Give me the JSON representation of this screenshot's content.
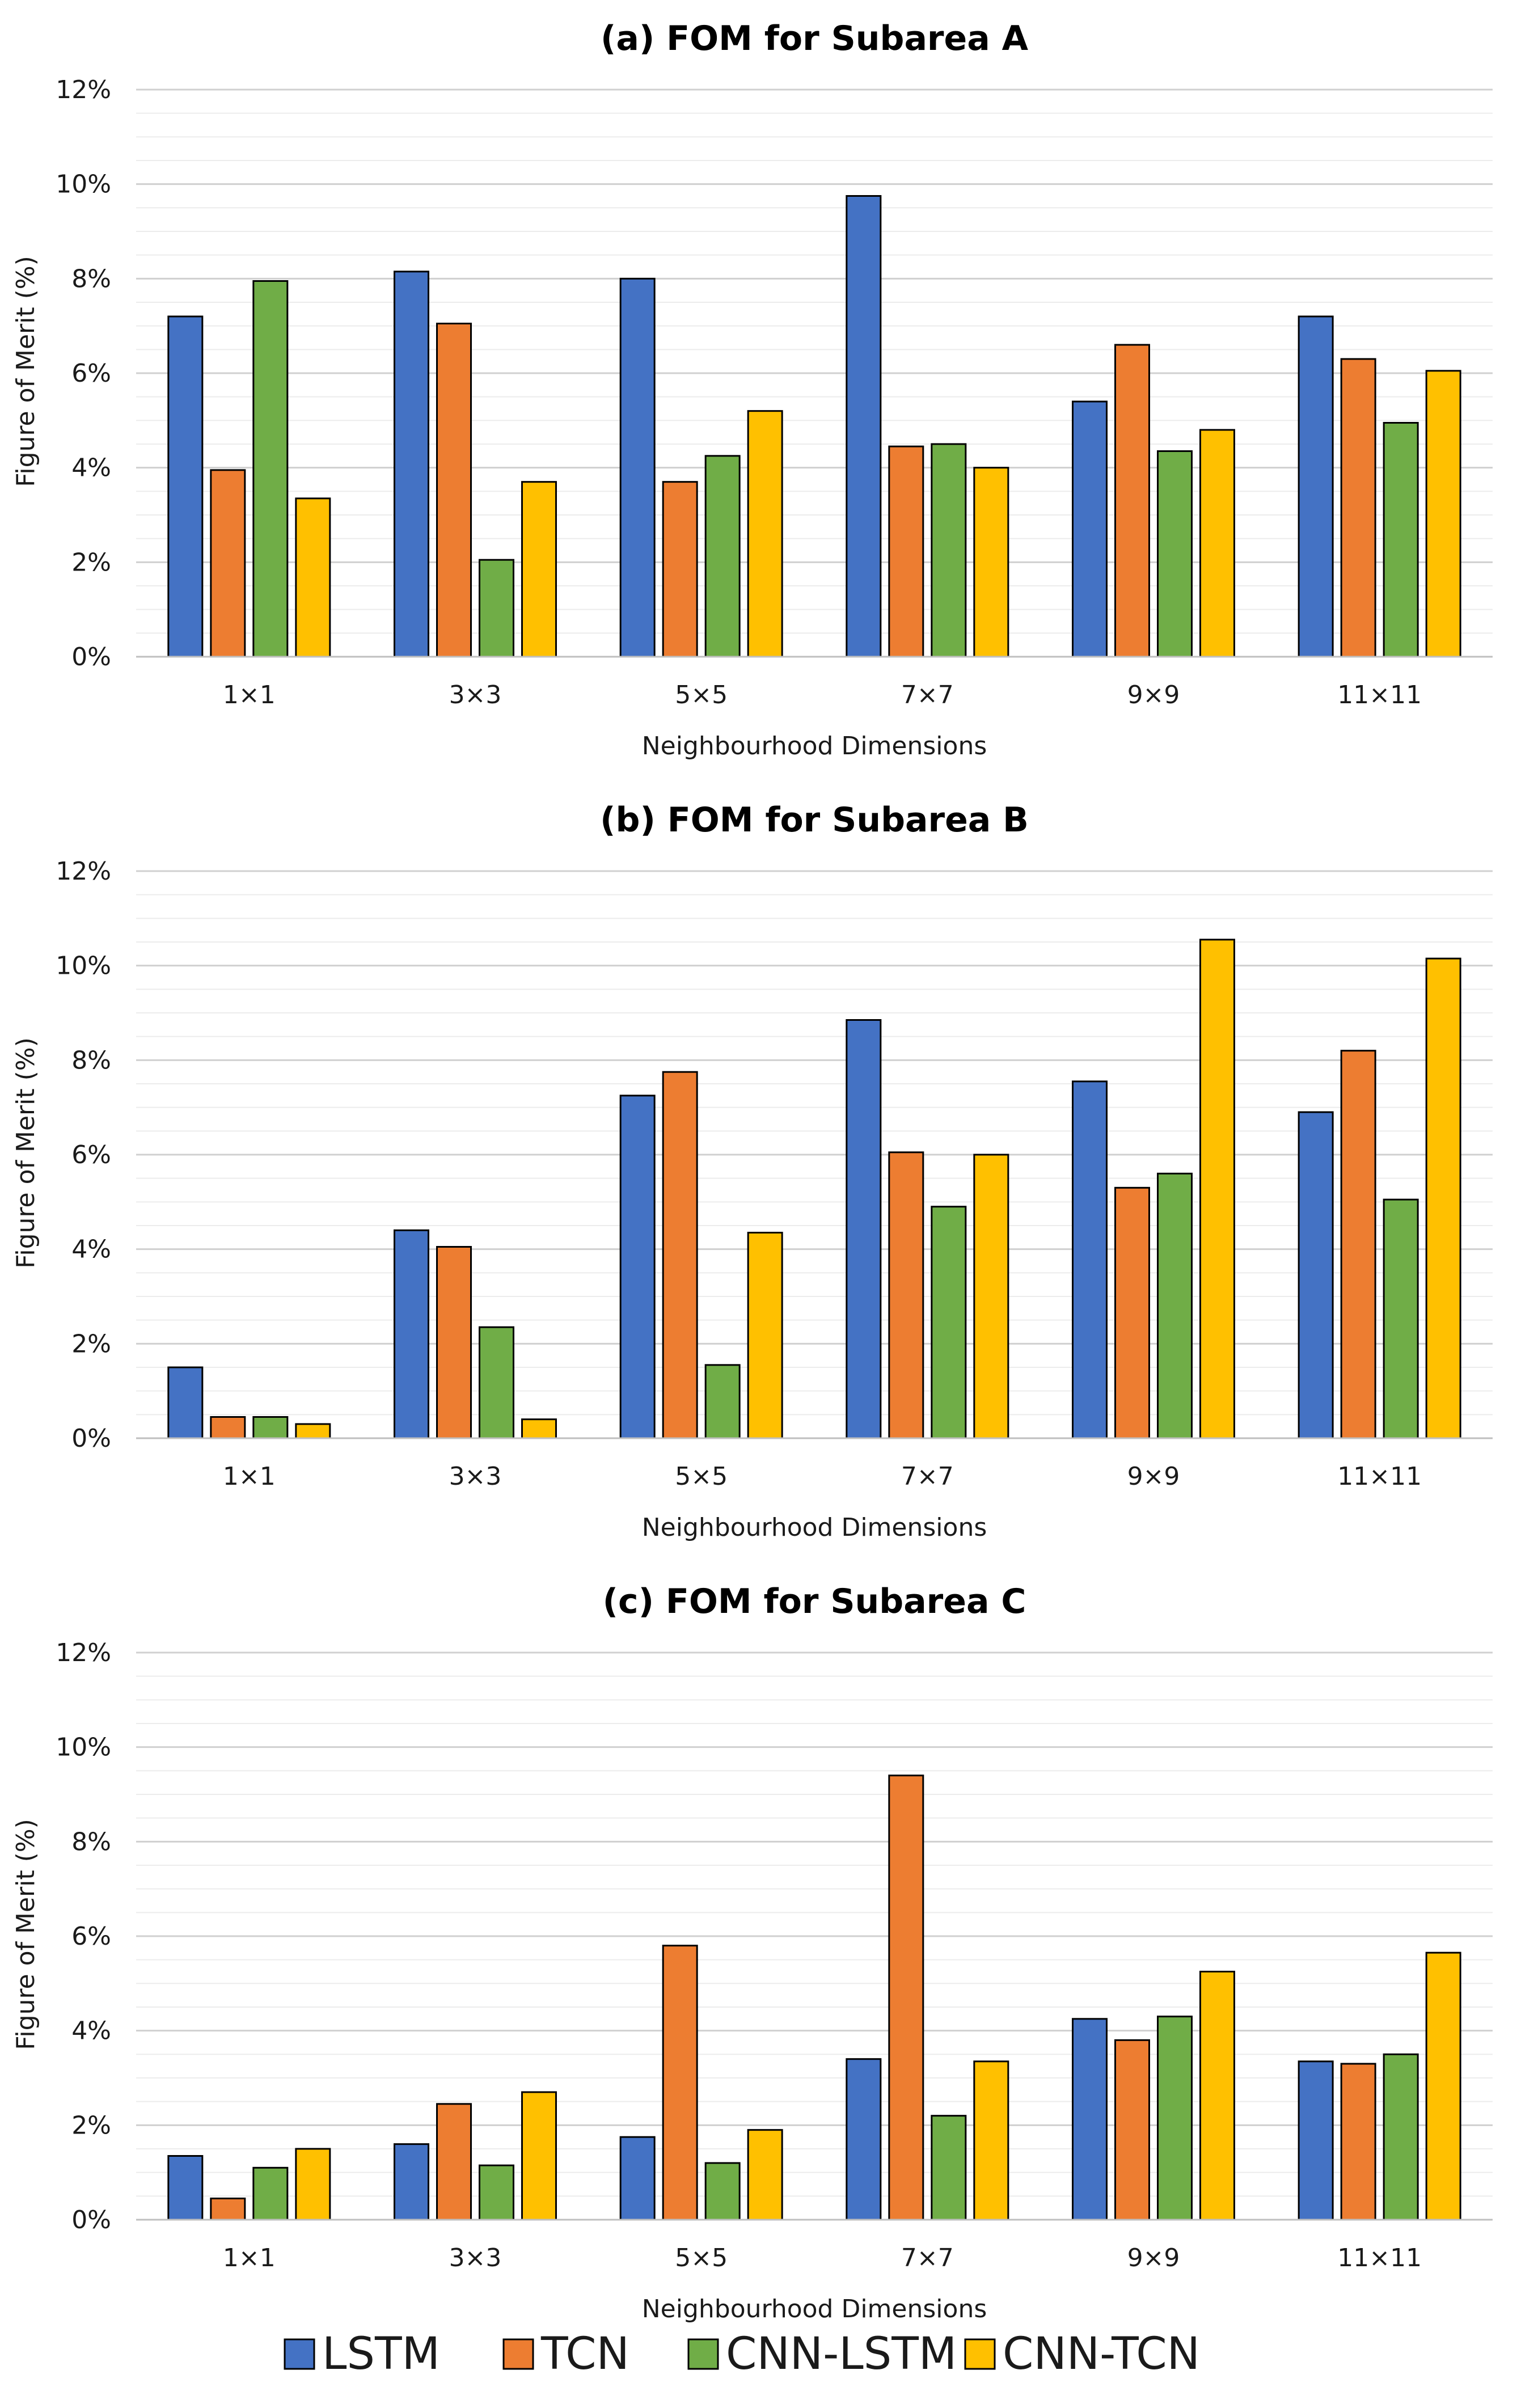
{
  "legend": [
    {
      "name": "LSTM",
      "color": "#4472C4"
    },
    {
      "name": "TCN",
      "color": "#ED7D31"
    },
    {
      "name": "CNN-LSTM",
      "color": "#70AD47"
    },
    {
      "name": "CNN-TCN",
      "color": "#FFC000"
    }
  ],
  "chart_data": [
    {
      "type": "bar",
      "title": "(a) FOM for Subarea A",
      "xlabel": "Neighbourhood Dimensions",
      "ylabel": "Figure of Merit (%)",
      "ylim": [
        0,
        12
      ],
      "yticks": [
        "0%",
        "2%",
        "4%",
        "6%",
        "8%",
        "10%",
        "12%"
      ],
      "minor_gridlines": true,
      "categories": [
        "1×1",
        "3×3",
        "5×5",
        "7×7",
        "9×9",
        "11×11"
      ],
      "series": [
        {
          "name": "LSTM",
          "values": [
            7.2,
            8.15,
            8.0,
            9.75,
            5.4,
            7.2
          ]
        },
        {
          "name": "TCN",
          "values": [
            3.95,
            7.05,
            3.7,
            4.45,
            6.6,
            6.3
          ]
        },
        {
          "name": "CNN-LSTM",
          "values": [
            7.95,
            2.05,
            4.25,
            4.5,
            4.35,
            4.95
          ]
        },
        {
          "name": "CNN-TCN",
          "values": [
            3.35,
            3.7,
            5.2,
            4.0,
            4.8,
            6.05
          ]
        }
      ]
    },
    {
      "type": "bar",
      "title": "(b) FOM for Subarea B",
      "xlabel": "Neighbourhood Dimensions",
      "ylabel": "Figure of Merit (%)",
      "ylim": [
        0,
        12
      ],
      "yticks": [
        "0%",
        "2%",
        "4%",
        "6%",
        "8%",
        "10%",
        "12%"
      ],
      "minor_gridlines": true,
      "categories": [
        "1×1",
        "3×3",
        "5×5",
        "7×7",
        "9×9",
        "11×11"
      ],
      "series": [
        {
          "name": "LSTM",
          "values": [
            1.5,
            4.4,
            7.25,
            8.85,
            7.55,
            6.9
          ]
        },
        {
          "name": "TCN",
          "values": [
            0.45,
            4.05,
            7.75,
            6.05,
            5.3,
            8.2
          ]
        },
        {
          "name": "CNN-LSTM",
          "values": [
            0.45,
            2.35,
            1.55,
            4.9,
            5.6,
            5.05
          ]
        },
        {
          "name": "CNN-TCN",
          "values": [
            0.3,
            0.4,
            4.35,
            6.0,
            10.55,
            10.15
          ]
        }
      ]
    },
    {
      "type": "bar",
      "title": "(c) FOM for Subarea C",
      "xlabel": "Neighbourhood Dimensions",
      "ylabel": "Figure of Merit (%)",
      "ylim": [
        0,
        12
      ],
      "yticks": [
        "0%",
        "2%",
        "4%",
        "6%",
        "8%",
        "10%",
        "12%"
      ],
      "minor_gridlines": true,
      "categories": [
        "1×1",
        "3×3",
        "5×5",
        "7×7",
        "9×9",
        "11×11"
      ],
      "series": [
        {
          "name": "LSTM",
          "values": [
            1.35,
            1.6,
            1.75,
            3.4,
            4.25,
            3.35
          ]
        },
        {
          "name": "TCN",
          "values": [
            0.45,
            2.45,
            5.8,
            9.4,
            3.8,
            3.3
          ]
        },
        {
          "name": "CNN-LSTM",
          "values": [
            1.1,
            1.15,
            1.2,
            2.2,
            4.3,
            3.5
          ]
        },
        {
          "name": "CNN-TCN",
          "values": [
            1.5,
            2.7,
            1.9,
            3.35,
            5.25,
            5.65
          ]
        }
      ]
    }
  ]
}
